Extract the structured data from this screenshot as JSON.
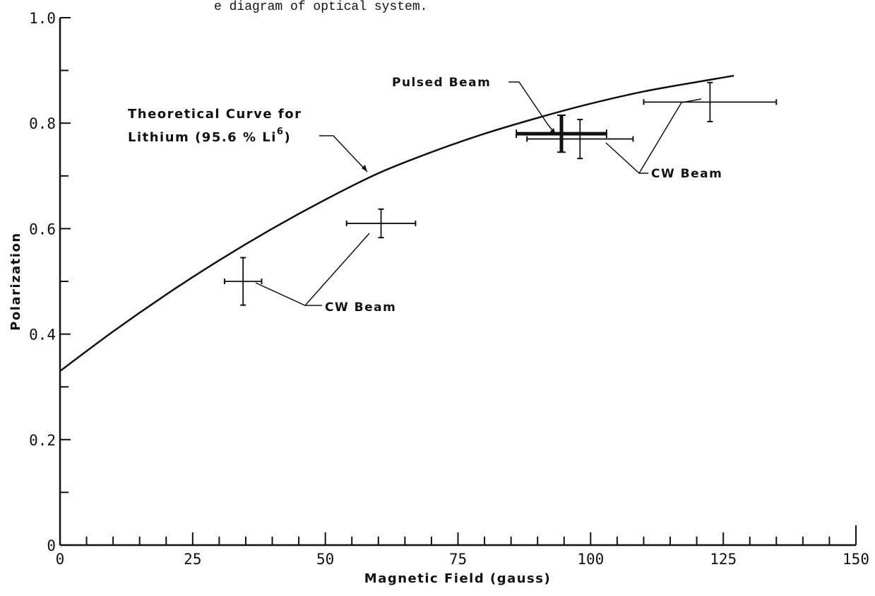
{
  "caption_fragment": "e diagram of optical system.",
  "chart_data": {
    "type": "scatter",
    "xlabel": "Magnetic Field (gauss)",
    "ylabel": "Polarization",
    "xlim": [
      0,
      150
    ],
    "ylim": [
      0,
      1.0
    ],
    "x_ticks": [
      "0",
      "25",
      "50",
      "75",
      "100",
      "125",
      "150"
    ],
    "x_tick_values": [
      0,
      25,
      50,
      75,
      100,
      125,
      150
    ],
    "y_ticks": [
      "0",
      "0.2",
      "0.4",
      "0.6",
      "0.8",
      "1.0"
    ],
    "y_tick_values": [
      0,
      0.2,
      0.4,
      0.6,
      0.8,
      1.0
    ],
    "grid": false,
    "theory_curve": {
      "x": [
        0,
        10,
        20,
        30,
        40,
        50,
        60,
        70,
        80,
        90,
        100,
        110,
        120,
        127
      ],
      "y": [
        0.33,
        0.405,
        0.475,
        0.54,
        0.6,
        0.655,
        0.705,
        0.745,
        0.78,
        0.81,
        0.837,
        0.86,
        0.878,
        0.89
      ]
    },
    "series": [
      {
        "name": "CW Beam",
        "points": [
          {
            "x": 34.5,
            "y": 0.5,
            "xerr": 3.5,
            "yerr": 0.045
          },
          {
            "x": 60.5,
            "y": 0.61,
            "xerr": 6.5,
            "yerr": 0.027
          },
          {
            "x": 98.0,
            "y": 0.77,
            "xerr": 10.0,
            "yerr": 0.037
          },
          {
            "x": 122.5,
            "y": 0.84,
            "xerr": 12.5,
            "yerr": 0.037
          }
        ]
      },
      {
        "name": "Pulsed Beam",
        "points": [
          {
            "x": 94.5,
            "y": 0.78,
            "xerr": 8.5,
            "yerr": 0.035
          }
        ]
      }
    ],
    "annotations": {
      "theory_line1": "Theoretical Curve for",
      "theory_line2_prefix": "Lithium (95.6 % Li",
      "theory_sup": "6",
      "theory_suffix": ")",
      "pulsed": "Pulsed Beam",
      "cw_upper": "CW Beam",
      "cw_lower": "CW Beam"
    }
  }
}
